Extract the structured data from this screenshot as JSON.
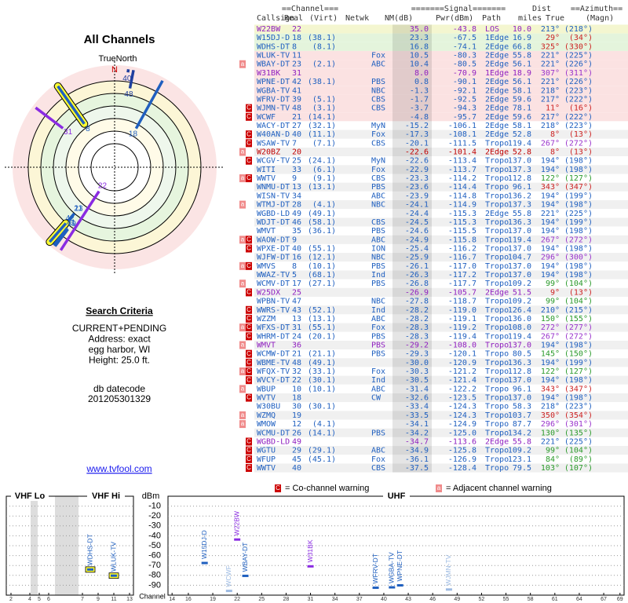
{
  "polar": {
    "title": "All Channels",
    "north_label": "TrueNorth",
    "north_mark": "N",
    "spokes": [
      {
        "label": "22",
        "azimuth": 213,
        "nm": 35.0,
        "color": "#8a2be2",
        "highlight": false
      },
      {
        "label": "18",
        "azimuth": 29,
        "nm": 23.3,
        "color": "#1f5fbf",
        "highlight": false
      },
      {
        "label": "8",
        "azimuth": 325,
        "nm": 16.8,
        "color": "#1f5fbf",
        "highlight": true
      },
      {
        "label": "11",
        "azimuth": 221,
        "nm": 10.5,
        "color": "#1f5fbf",
        "highlight": false
      },
      {
        "label": "23",
        "azimuth": 221,
        "nm": 10.4,
        "color": "#1f5fbf",
        "highlight": false
      },
      {
        "label": "31",
        "azimuth": 307,
        "nm": 8.0,
        "color": "#8a2be2",
        "highlight": false
      },
      {
        "label": "42",
        "azimuth": 221,
        "nm": 0.8,
        "color": "#1f5fbf",
        "highlight": true
      },
      {
        "label": "41",
        "azimuth": 218,
        "nm": -1.3,
        "color": "#1f5fbf",
        "highlight": false
      },
      {
        "label": "39",
        "azimuth": 217,
        "nm": -1.7,
        "color": "#1f5fbf",
        "highlight": false
      },
      {
        "label": "48",
        "azimuth": 11,
        "nm": -3.7,
        "color": "#1f3f9f",
        "highlight": false
      },
      {
        "label": "40",
        "azimuth": 8,
        "nm": -17.3,
        "color": "#1f3f9f",
        "highlight": false
      }
    ]
  },
  "search": {
    "title": "Search Criteria",
    "lines": [
      "CURRENT+PENDING",
      "Address: exact",
      "egg harbor, WI",
      "Height: 25.0 ft."
    ],
    "datecode_label": "db datecode",
    "datecode": "201205301329",
    "link": "www.tvfool.com"
  },
  "legend": {
    "items": [
      {
        "letter": "C",
        "text": "= Co-channel warning",
        "color": "#cc0000"
      },
      {
        "letter": "a",
        "text": "= Adjacent channel warning",
        "color": "#f08a8a"
      }
    ]
  },
  "table": {
    "group_headers": [
      "==Channel===",
      "=======Signal=======",
      "Dist",
      "==Azimuth=="
    ],
    "headers": [
      "Callsign",
      "Real",
      "(Virt)",
      "Netwk",
      "NM(dB)",
      "Pwr(dBm)",
      "Path",
      "miles",
      "True",
      "(Magn)"
    ],
    "rows": [
      [
        "W22BW",
        "22",
        null,
        null,
        "35.0",
        "-43.8",
        "LOS",
        "10.0",
        "213°",
        "(218°)"
      ],
      [
        "W15DJ-D",
        "18",
        "(38.1)",
        null,
        "23.3",
        "-67.5",
        "1Edge",
        "16.9",
        "29°",
        "(34°)"
      ],
      [
        "WDHS-DT",
        "8",
        "(8.1)",
        null,
        "16.8",
        "-74.1",
        "2Edge",
        "66.8",
        "325°",
        "(330°)"
      ],
      [
        "WLUK-TV",
        "11",
        null,
        "Fox",
        "10.5",
        "-80.3",
        "2Edge",
        "55.8",
        "221°",
        "(225°)"
      ],
      [
        "WBAY-DT",
        "23",
        "(2.1)",
        "ABC",
        "10.4",
        "-80.5",
        "2Edge",
        "56.1",
        "221°",
        "(226°)"
      ],
      [
        "W31BK",
        "31",
        null,
        null,
        "8.0",
        "-70.9",
        "1Edge",
        "18.9",
        "307°",
        "(311°)"
      ],
      [
        "WPNE-DT",
        "42",
        "(38.1)",
        "PBS",
        "0.8",
        "-90.1",
        "2Edge",
        "56.1",
        "221°",
        "(226°)"
      ],
      [
        "WGBA-TV",
        "41",
        null,
        "NBC",
        "-1.3",
        "-92.1",
        "2Edge",
        "58.1",
        "218°",
        "(223°)"
      ],
      [
        "WFRV-DT",
        "39",
        "(5.1)",
        "CBS",
        "-1.7",
        "-92.5",
        "2Edge",
        "59.6",
        "217°",
        "(222°)"
      ],
      [
        "WJMN-TV",
        "48",
        "(3.1)",
        "CBS",
        "-3.7",
        "-94.3",
        "2Edge",
        "78.1",
        "11°",
        "(16°)"
      ],
      [
        "WCWF",
        "21",
        "(14.1)",
        null,
        "-4.8",
        "-95.7",
        "2Edge",
        "59.6",
        "217°",
        "(222°)"
      ],
      [
        "WACY-DT",
        "27",
        "(32.1)",
        "MyN",
        "-15.2",
        "-106.1",
        "2Edge",
        "58.1",
        "218°",
        "(223°)"
      ],
      [
        "W40AN-D",
        "40",
        "(11.1)",
        "Fox",
        "-17.3",
        "-108.1",
        "2Edge",
        "52.8",
        "8°",
        "(13°)"
      ],
      [
        "WSAW-TV",
        "7",
        "(7.1)",
        "CBS",
        "-20.1",
        "-111.5",
        "Tropo",
        "119.4",
        "267°",
        "(272°)"
      ],
      [
        "W20BZ",
        "20",
        null,
        null,
        "-22.6",
        "-101.4",
        "2Edge",
        "52.8",
        "8°",
        "(13°)"
      ],
      [
        "WCGV-TV",
        "25",
        "(24.1)",
        "MyN",
        "-22.6",
        "-113.4",
        "Tropo",
        "137.0",
        "194°",
        "(198°)"
      ],
      [
        "WITI",
        "33",
        "(6.1)",
        "Fox",
        "-22.9",
        "-113.7",
        "Tropo",
        "137.3",
        "194°",
        "(198°)"
      ],
      [
        "WWTV",
        "9",
        "(9.1)",
        "CBS",
        "-23.3",
        "-114.2",
        "Tropo",
        "112.8",
        "122°",
        "(127°)"
      ],
      [
        "WNMU-DT",
        "13",
        "(13.1)",
        "PBS",
        "-23.6",
        "-114.4",
        "Tropo",
        "96.1",
        "343°",
        "(347°)"
      ],
      [
        "WISN-TV",
        "34",
        null,
        "ABC",
        "-23.9",
        "-114.8",
        "Tropo",
        "136.2",
        "194°",
        "(199°)"
      ],
      [
        "WTMJ-DT",
        "28",
        "(4.1)",
        "NBC",
        "-24.1",
        "-114.9",
        "Tropo",
        "137.3",
        "194°",
        "(198°)"
      ],
      [
        "WGBD-LD",
        "49",
        "(49.1)",
        null,
        "-24.4",
        "-115.3",
        "2Edge",
        "55.8",
        "221°",
        "(225°)"
      ],
      [
        "WDJT-DT",
        "46",
        "(58.1)",
        "CBS",
        "-24.5",
        "-115.3",
        "Tropo",
        "136.3",
        "194°",
        "(199°)"
      ],
      [
        "WMVT",
        "35",
        "(36.1)",
        "PBS",
        "-24.6",
        "-115.5",
        "Tropo",
        "137.0",
        "194°",
        "(198°)"
      ],
      [
        "WAOW-DT",
        "9",
        null,
        "ABC",
        "-24.9",
        "-115.8",
        "Tropo",
        "119.4",
        "267°",
        "(272°)"
      ],
      [
        "WPXE-DT",
        "40",
        "(55.1)",
        "ION",
        "-25.4",
        "-116.2",
        "Tropo",
        "137.0",
        "194°",
        "(198°)"
      ],
      [
        "WJFW-DT",
        "16",
        "(12.1)",
        "NBC",
        "-25.9",
        "-116.7",
        "Tropo",
        "104.7",
        "296°",
        "(300°)"
      ],
      [
        "WMVS",
        "8",
        "(10.1)",
        "PBS",
        "-26.1",
        "-117.0",
        "Tropo",
        "137.0",
        "194°",
        "(198°)"
      ],
      [
        "WWAZ-TV",
        "5",
        "(68.1)",
        "Ind",
        "-26.3",
        "-117.2",
        "Tropo",
        "137.0",
        "194°",
        "(198°)"
      ],
      [
        "WCMV-DT",
        "17",
        "(27.1)",
        "PBS",
        "-26.8",
        "-117.7",
        "Tropo",
        "109.2",
        "99°",
        "(104°)"
      ],
      [
        "W25DX",
        "25",
        null,
        null,
        "-26.9",
        "-105.7",
        "2Edge",
        "51.5",
        "9°",
        "(13°)"
      ],
      [
        "WPBN-TV",
        "47",
        null,
        "NBC",
        "-27.8",
        "-118.7",
        "Tropo",
        "109.2",
        "99°",
        "(104°)"
      ],
      [
        "WWRS-TV",
        "43",
        "(52.1)",
        "Ind",
        "-28.2",
        "-119.0",
        "Tropo",
        "126.4",
        "210°",
        "(215°)"
      ],
      [
        "WZZM",
        "13",
        "(13.1)",
        "ABC",
        "-28.2",
        "-119.1",
        "Tropo",
        "136.0",
        "150°",
        "(155°)"
      ],
      [
        "WFXS-DT",
        "31",
        "(55.1)",
        "Fox",
        "-28.3",
        "-119.2",
        "Tropo",
        "108.0",
        "272°",
        "(277°)"
      ],
      [
        "WHRM-DT",
        "24",
        "(20.1)",
        "PBS",
        "-28.3",
        "-119.4",
        "Tropo",
        "119.4",
        "267°",
        "(272°)"
      ],
      [
        "WMVT",
        "36",
        null,
        "PBS",
        "-29.2",
        "-108.0",
        "Tropo",
        "137.0",
        "194°",
        "(198°)"
      ],
      [
        "WCMW-DT",
        "21",
        "(21.1)",
        "PBS",
        "-29.3",
        "-120.1",
        "Tropo",
        "80.5",
        "145°",
        "(150°)"
      ],
      [
        "WBME-TV",
        "48",
        "(49.1)",
        null,
        "-30.0",
        "-120.9",
        "Tropo",
        "136.3",
        "194°",
        "(199°)"
      ],
      [
        "WFQX-TV",
        "32",
        "(33.1)",
        "Fox",
        "-30.3",
        "-121.2",
        "Tropo",
        "112.8",
        "122°",
        "(127°)"
      ],
      [
        "WVCY-DT",
        "22",
        "(30.1)",
        "Ind",
        "-30.5",
        "-121.4",
        "Tropo",
        "137.0",
        "194°",
        "(198°)"
      ],
      [
        "WBUP",
        "10",
        "(10.1)",
        "ABC",
        "-31.4",
        "-122.2",
        "Tropo",
        "96.1",
        "343°",
        "(347°)"
      ],
      [
        "WVTV",
        "18",
        null,
        "CW",
        "-32.6",
        "-123.5",
        "Tropo",
        "137.0",
        "194°",
        "(198°)"
      ],
      [
        "W30BU",
        "30",
        "(30.1)",
        null,
        "-33.4",
        "-124.3",
        "Tropo",
        "58.3",
        "218°",
        "(223°)"
      ],
      [
        "WZMQ",
        "19",
        null,
        null,
        "-33.5",
        "-124.3",
        "Tropo",
        "103.7",
        "350°",
        "(354°)"
      ],
      [
        "WMOW",
        "12",
        "(4.1)",
        null,
        "-34.1",
        "-124.9",
        "Tropo",
        "87.7",
        "296°",
        "(301°)"
      ],
      [
        "WCMU-DT",
        "26",
        "(14.1)",
        "PBS",
        "-34.2",
        "-125.0",
        "Tropo",
        "134.2",
        "130°",
        "(135°)"
      ],
      [
        "WGBD-LD",
        "49",
        null,
        null,
        "-34.7",
        "-113.6",
        "2Edge",
        "55.8",
        "221°",
        "(225°)"
      ],
      [
        "WGTU",
        "29",
        "(29.1)",
        "ABC",
        "-34.9",
        "-125.8",
        "Tropo",
        "109.2",
        "99°",
        "(104°)"
      ],
      [
        "WFUP",
        "45",
        "(45.1)",
        "Fox",
        "-36.1",
        "-126.9",
        "Tropo",
        "123.1",
        "84°",
        "(89°)"
      ],
      [
        "WWTV",
        "40",
        null,
        "CBS",
        "-37.5",
        "-128.4",
        "Tropo",
        "79.5",
        "103°",
        "(107°)"
      ]
    ],
    "warnings": [
      [],
      [],
      [],
      [],
      [
        "a"
      ],
      [],
      [],
      [],
      [],
      [
        "C"
      ],
      [
        "C"
      ],
      [],
      [
        "C"
      ],
      [
        "C"
      ],
      [
        "a"
      ],
      [
        "C"
      ],
      [],
      [
        "a",
        "C"
      ],
      [],
      [],
      [
        "a"
      ],
      [],
      [],
      [],
      [
        "a",
        "C"
      ],
      [
        "C"
      ],
      [],
      [
        "a",
        "C"
      ],
      [],
      [
        "a"
      ],
      [
        "C"
      ],
      [],
      [
        "C"
      ],
      [
        "C"
      ],
      [
        "a",
        "C"
      ],
      [
        "C"
      ],
      [
        "a"
      ],
      [
        "C"
      ],
      [
        "C"
      ],
      [
        "a",
        "C"
      ],
      [
        "C"
      ],
      [
        "a"
      ],
      [
        "C"
      ],
      [],
      [
        "a"
      ],
      [
        "a"
      ],
      [],
      [
        "C"
      ],
      [
        "C"
      ],
      [
        "C"
      ],
      [
        "C"
      ]
    ],
    "row_colors": [
      "#9020c0",
      "#2060c0",
      "#2060c0",
      "#2060c0",
      "#2060c0",
      "#9020c0",
      "#2060c0",
      "#2060c0",
      "#2060c0",
      "#2060c0",
      "#2060c0",
      "#2060c0",
      "#2060c0",
      "#2060c0",
      "#c00000",
      "#2060c0",
      "#2060c0",
      "#2060c0",
      "#2060c0",
      "#2060c0",
      "#2060c0",
      "#2060c0",
      "#2060c0",
      "#2060c0",
      "#2060c0",
      "#2060c0",
      "#2060c0",
      "#2060c0",
      "#2060c0",
      "#2060c0",
      "#9020c0",
      "#2060c0",
      "#2060c0",
      "#2060c0",
      "#2060c0",
      "#2060c0",
      "#9020c0",
      "#2060c0",
      "#2060c0",
      "#2060c0",
      "#2060c0",
      "#2060c0",
      "#2060c0",
      "#2060c0",
      "#2060c0",
      "#2060c0",
      "#2060c0",
      "#9020c0",
      "#2060c0",
      "#2060c0",
      "#2060c0"
    ],
    "azimuth_colors": [
      "#2060c0",
      "#cc2222",
      "#cc2222",
      "#2060c0",
      "#2060c0",
      "#9933cc",
      "#2060c0",
      "#2060c0",
      "#2060c0",
      "#cc2222",
      "#2060c0",
      "#2060c0",
      "#cc2222",
      "#9933cc",
      "#cc2222",
      "#2060c0",
      "#2060c0",
      "#2a9a2a",
      "#cc2222",
      "#2060c0",
      "#2060c0",
      "#2060c0",
      "#2060c0",
      "#2060c0",
      "#9933cc",
      "#2060c0",
      "#9933cc",
      "#2060c0",
      "#2060c0",
      "#2a9a2a",
      "#cc2222",
      "#2a9a2a",
      "#2060c0",
      "#2a9a2a",
      "#9933cc",
      "#9933cc",
      "#2060c0",
      "#2a9a2a",
      "#2060c0",
      "#2a9a2a",
      "#2060c0",
      "#cc2222",
      "#2060c0",
      "#2060c0",
      "#cc2222",
      "#9933cc",
      "#2a9a2a",
      "#2060c0",
      "#2a9a2a",
      "#2a9a2a",
      "#2a9a2a"
    ],
    "row_backgrounds": [
      "#f4f6d0",
      "#e4f4dc",
      "#e4f4dc",
      "#fbe2e2",
      "#fbe2e2",
      "#fbe2e2",
      "#fbe2e2",
      "#fbe2e2",
      "#fbe2e2",
      "#fbe2e2",
      "#fbe2e2",
      "#ffffff",
      "#f0f0f0",
      "#ffffff",
      "#f0f0f0",
      "#ffffff",
      "#f0f0f0",
      "#ffffff",
      "#f0f0f0",
      "#ffffff",
      "#f0f0f0",
      "#ffffff",
      "#f0f0f0",
      "#ffffff",
      "#f0f0f0",
      "#ffffff",
      "#f0f0f0",
      "#ffffff",
      "#f0f0f0",
      "#ffffff",
      "#f0f0f0",
      "#ffffff",
      "#f0f0f0",
      "#ffffff",
      "#f0f0f0",
      "#ffffff",
      "#f0f0f0",
      "#ffffff",
      "#f0f0f0",
      "#ffffff",
      "#f0f0f0",
      "#ffffff",
      "#f0f0f0",
      "#ffffff",
      "#f0f0f0",
      "#ffffff",
      "#f0f0f0",
      "#ffffff",
      "#f0f0f0",
      "#ffffff",
      "#f0f0f0"
    ]
  },
  "chart_data": [
    {
      "type": "scatter",
      "segments": [
        "VHF Lo",
        "VHF Hi"
      ],
      "x": [
        8,
        11
      ],
      "values": [
        -74.1,
        -80.3
      ],
      "point_labels": [
        "WDHS-DT",
        "WLUK-TV"
      ],
      "colors": [
        "#1f5fbf",
        "#1f5fbf"
      ],
      "highlight": [
        true,
        true
      ],
      "xlim": [
        1.5,
        13.5
      ],
      "xticks": [
        2,
        4,
        5,
        6,
        7,
        9,
        11,
        13
      ],
      "ylim": [
        -100,
        0
      ],
      "yticks": [
        -10,
        -20,
        -30,
        -40,
        -50,
        -60,
        -70,
        -80,
        -90
      ],
      "grid": true
    },
    {
      "type": "scatter",
      "title": "UHF",
      "y_label": "dBm",
      "x_label": "Channel",
      "x": [
        18,
        21,
        22,
        23,
        31,
        39,
        41,
        42,
        48
      ],
      "values": [
        -67.5,
        -95.7,
        -43.8,
        -80.5,
        -70.9,
        -92.5,
        -92.1,
        -90.1,
        -94.3
      ],
      "point_labels": [
        "W15DJ-D",
        "WCWF",
        "W22BW",
        "WBAY-DT",
        "W31BK",
        "WFRV-DT",
        "WGBA-TV",
        "WPNE-DT",
        "WJMN-TV"
      ],
      "colors": [
        "#1f5fbf",
        "#9dbbe3",
        "#8a2be2",
        "#1f5fbf",
        "#8a2be2",
        "#1f5fbf",
        "#1f5fbf",
        "#1f5fbf",
        "#9dbbe3"
      ],
      "highlight": [
        false,
        false,
        false,
        false,
        false,
        false,
        false,
        false,
        false
      ],
      "xlim": [
        13.5,
        69.5
      ],
      "xticks": [
        14,
        16,
        19,
        22,
        25,
        28,
        31,
        34,
        37,
        40,
        43,
        46,
        49,
        52,
        55,
        58,
        61,
        64,
        67,
        69
      ],
      "ylim": [
        -100,
        0
      ],
      "yticks": [
        -10,
        -20,
        -30,
        -40,
        -50,
        -60,
        -70,
        -80,
        -90
      ],
      "grid": true
    }
  ]
}
